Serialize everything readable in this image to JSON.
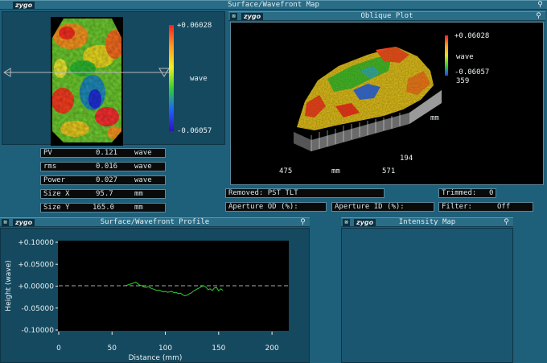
{
  "top_title": "Surface/Wavefront Map",
  "logo": "zygo",
  "surface_map": {
    "colorbar_max": "+0.06028",
    "colorbar_unit": "wave",
    "colorbar_min": "-0.06057"
  },
  "stats": [
    {
      "label": "PV",
      "value": "0.121",
      "unit": "wave"
    },
    {
      "label": "rms",
      "value": "0.016",
      "unit": "wave"
    },
    {
      "label": "Power",
      "value": "0.027",
      "unit": "wave"
    },
    {
      "label": "Size X",
      "value": "95.7",
      "unit": "mm"
    },
    {
      "label": "Size Y",
      "value": "165.0",
      "unit": "mm"
    }
  ],
  "oblique": {
    "title": "Oblique Plot",
    "colorbar_max": "+0.06028",
    "colorbar_unit": "wave",
    "colorbar_min": "-0.06057",
    "y_top": "359",
    "y_unit": "mm",
    "y_bottom": "194",
    "x_left": "475",
    "x_unit": "mm",
    "x_right": "571"
  },
  "info": {
    "removed": "Removed: PST TLT",
    "trimmed_label": "Trimmed:",
    "trimmed_value": "0",
    "aperture_od": "Aperture OD (%):",
    "aperture_id": "Aperture ID (%):",
    "filter_label": "Filter:",
    "filter_value": "Off"
  },
  "profile": {
    "title": "Surface/Wavefront Profile"
  },
  "intensity": {
    "title": "Intensity Map"
  },
  "chart_data": {
    "type": "line",
    "title": "",
    "xlabel": "Distance (mm)",
    "ylabel": "Height (wave)",
    "xlim": [
      0,
      215
    ],
    "ylim": [
      -0.1,
      0.1
    ],
    "xticks": [
      0,
      50,
      100,
      150,
      200
    ],
    "yticks": [
      "+0.10000",
      "+0.05000",
      "+0.00000",
      "-0.05000",
      "-0.10000"
    ],
    "yticks_values": [
      0.1,
      0.05,
      0.0,
      -0.05,
      -0.1
    ],
    "x": [
      62,
      64,
      66,
      68,
      70,
      72,
      74,
      76,
      78,
      80,
      82,
      84,
      86,
      88,
      90,
      92,
      94,
      96,
      98,
      100,
      102,
      104,
      106,
      108,
      110,
      112,
      114,
      116,
      118,
      120,
      122,
      124,
      126,
      128,
      130,
      132,
      134,
      136,
      138,
      140,
      142,
      144,
      146,
      148,
      150,
      152,
      154
    ],
    "values": [
      0.001,
      0.002,
      0.004,
      0.005,
      0.007,
      0.009,
      0.006,
      0.002,
      0.001,
      -0.002,
      -0.003,
      -0.001,
      -0.004,
      -0.006,
      -0.008,
      -0.01,
      -0.009,
      -0.011,
      -0.013,
      -0.012,
      -0.014,
      -0.013,
      -0.012,
      -0.015,
      -0.014,
      -0.017,
      -0.016,
      -0.019,
      -0.022,
      -0.021,
      -0.018,
      -0.016,
      -0.012,
      -0.009,
      -0.006,
      -0.004,
      -0.001,
      0.001,
      -0.002,
      -0.008,
      -0.006,
      -0.01,
      -0.004,
      -0.003,
      -0.011,
      -0.006,
      -0.01
    ]
  }
}
